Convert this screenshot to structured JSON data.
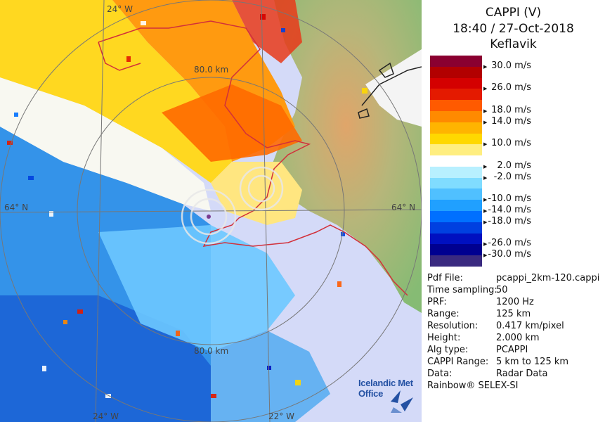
{
  "header": {
    "product": "CAPPI (V)",
    "datetime": "18:40 / 27-Oct-2018",
    "station": "Keflavik"
  },
  "legend": {
    "items": [
      {
        "label": "30.0 m/s",
        "color": "#8a0030"
      },
      {
        "label": "",
        "color": "#b20000"
      },
      {
        "label": "26.0 m/s",
        "color": "#d40000"
      },
      {
        "label": "",
        "color": "#e41a00"
      },
      {
        "label": "18.0 m/s",
        "color": "#ff5a00"
      },
      {
        "label": "14.0 m/s",
        "color": "#ff8a00"
      },
      {
        "label": "",
        "color": "#ffb400"
      },
      {
        "label": "10.0 m/s",
        "color": "#ffd800"
      },
      {
        "label": "",
        "color": "#ffee80"
      },
      {
        "label": "2.0 m/s",
        "color": "#ffffff"
      },
      {
        "label": "-2.0 m/s",
        "color": "#b8f0ff"
      },
      {
        "label": "",
        "color": "#80dcff"
      },
      {
        "label": "-10.0 m/s",
        "color": "#50c0ff"
      },
      {
        "label": "-14.0 m/s",
        "color": "#20a0ff"
      },
      {
        "label": "-18.0 m/s",
        "color": "#0070ff"
      },
      {
        "label": "",
        "color": "#0040e0"
      },
      {
        "label": "-26.0 m/s",
        "color": "#0010c0"
      },
      {
        "label": "-30.0 m/s",
        "color": "#000090"
      },
      {
        "label": "",
        "color": "#3a2a80"
      }
    ]
  },
  "info": [
    {
      "key": "Pdf File:",
      "value": "pcappi_2km-120.cappi"
    },
    {
      "key": "Time sampling:",
      "value": "50"
    },
    {
      "key": "PRF:",
      "value": "1200 Hz"
    },
    {
      "key": "Range:",
      "value": "125 km"
    },
    {
      "key": "Resolution:",
      "value": "0.417 km/pixel"
    },
    {
      "key": "Height:",
      "value": "2.000 km"
    },
    {
      "key": "Alg type:",
      "value": "PCAPPI"
    },
    {
      "key": "CAPPI Range:",
      "value": "5 km to 125 km"
    },
    {
      "key": "Data:",
      "value": "Radar Data"
    }
  ],
  "footer": "Rainbow® SELEX-SI",
  "logo": {
    "line1": "Icelandic Met",
    "line2": "Office"
  },
  "map": {
    "labels": {
      "top_lon": "24° W",
      "bottom_lon_left": "24° W",
      "bottom_lon_right": "22° W",
      "lat_left": "64° N",
      "lat_right": "64° N",
      "ring_top": "80.0 km",
      "ring_bottom": "80.0 km"
    },
    "colors": {
      "sea": "#d4daf8",
      "land": "#8fbf7a",
      "coast": "#d2303a",
      "grid": "#777777"
    }
  }
}
